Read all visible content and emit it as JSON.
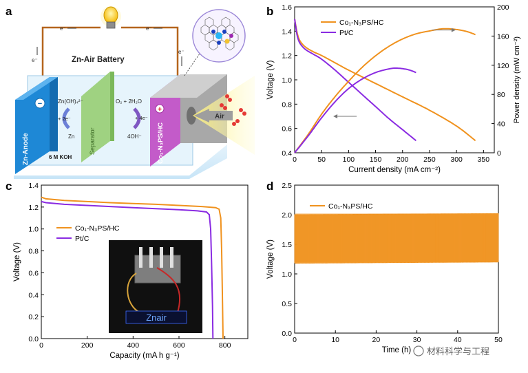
{
  "panels": {
    "a": {
      "letter": "a",
      "title": "Zn-Air Battery",
      "electron_label": "e⁻",
      "anode": "Zn-Anode",
      "anode_sign": "−",
      "separator": "Separator",
      "cathode": "Co₁-N₃PS/HC",
      "cathode_sign": "+",
      "electrolyte": "6 M KOH",
      "zincate": "Zn(OH)₄²⁻",
      "minus_2e": "+ 2e⁻",
      "zn": "Zn",
      "o2_h2o": "O₂ + 2H₂O",
      "plus_4e": "+ 4e⁻",
      "oh": "4OH⁻",
      "air": "Air"
    },
    "b": {
      "letter": "b"
    },
    "c": {
      "letter": "c"
    },
    "d": {
      "letter": "d"
    }
  },
  "watermark": "材料科学与工程",
  "colors": {
    "orange": "#f0921e",
    "purple": "#8a2be2"
  },
  "chart_data": [
    {
      "id": "b",
      "type": "line",
      "xlabel": "Current density (mA cm⁻²)",
      "ylabel": "Voltage (V)",
      "y2label": "Power density (mW cm⁻²)",
      "xlim": [
        0,
        370
      ],
      "ylim": [
        0.4,
        1.6
      ],
      "y2lim": [
        0,
        200
      ],
      "xticks": [
        0,
        50,
        100,
        150,
        200,
        250,
        300,
        350
      ],
      "yticks": [
        0.4,
        0.6,
        0.8,
        1.0,
        1.2,
        1.4,
        1.6
      ],
      "y2ticks": [
        0,
        40,
        80,
        120,
        160,
        200
      ],
      "series": [
        {
          "name": "Co₁-N₃PS/HC",
          "color": "#f0921e",
          "axis": "left",
          "x": [
            0,
            2,
            5,
            10,
            20,
            35,
            50,
            75,
            100,
            150,
            200,
            250,
            300,
            335
          ],
          "y": [
            1.5,
            1.45,
            1.38,
            1.32,
            1.27,
            1.23,
            1.2,
            1.14,
            1.08,
            0.97,
            0.86,
            0.75,
            0.62,
            0.5
          ]
        },
        {
          "name": "Pt/C",
          "color": "#8a2be2",
          "axis": "left",
          "x": [
            0,
            2,
            5,
            10,
            20,
            35,
            50,
            75,
            100,
            125,
            150,
            175,
            200,
            225
          ],
          "y": [
            1.5,
            1.44,
            1.36,
            1.3,
            1.25,
            1.21,
            1.17,
            1.08,
            0.98,
            0.88,
            0.78,
            0.68,
            0.59,
            0.5
          ]
        },
        {
          "name": "Co₁-N₃PS/HC power",
          "color": "#f0921e",
          "axis": "right",
          "x": [
            0,
            25,
            50,
            75,
            100,
            125,
            150,
            175,
            200,
            225,
            250,
            275,
            300,
            320,
            335
          ],
          "y": [
            0,
            25,
            53,
            77,
            98,
            117,
            133,
            146,
            156,
            163,
            167,
            170,
            169,
            166,
            162
          ]
        },
        {
          "name": "Pt/C power",
          "color": "#8a2be2",
          "axis": "right",
          "x": [
            0,
            25,
            50,
            75,
            100,
            125,
            150,
            175,
            190,
            210,
            225
          ],
          "y": [
            0,
            23,
            48,
            70,
            88,
            101,
            110,
            115,
            116,
            114,
            110
          ]
        }
      ],
      "legend": [
        "Co₁-N₃PS/HC",
        "Pt/C"
      ],
      "legend_position": "top-left"
    },
    {
      "id": "c",
      "type": "line",
      "xlabel": "Capacity (mA h g⁻¹)",
      "ylabel": "Voltage (V)",
      "xlim": [
        0,
        900
      ],
      "ylim": [
        0,
        1.4
      ],
      "xticks": [
        0,
        200,
        400,
        600,
        800
      ],
      "yticks": [
        0.0,
        0.2,
        0.4,
        0.6,
        0.8,
        1.0,
        1.2,
        1.4
      ],
      "series": [
        {
          "name": "Co₁-N₃PS/HC",
          "color": "#f0921e",
          "x": [
            0,
            20,
            100,
            200,
            300,
            400,
            500,
            600,
            700,
            760,
            775,
            782,
            786,
            790,
            792
          ],
          "y": [
            1.29,
            1.275,
            1.26,
            1.25,
            1.24,
            1.232,
            1.225,
            1.215,
            1.205,
            1.195,
            1.18,
            1.1,
            0.8,
            0.3,
            0.0
          ]
        },
        {
          "name": "Pt/C",
          "color": "#8a2be2",
          "x": [
            0,
            20,
            100,
            200,
            300,
            400,
            500,
            600,
            680,
            720,
            732,
            738,
            742,
            746,
            748
          ],
          "y": [
            1.25,
            1.24,
            1.225,
            1.215,
            1.205,
            1.195,
            1.185,
            1.175,
            1.165,
            1.155,
            1.13,
            1.0,
            0.7,
            0.3,
            0.0
          ]
        }
      ],
      "legend": [
        "Co₁-N₃PS/HC",
        "Pt/C"
      ],
      "legend_position": "middle-left",
      "inset_label": "Znair"
    },
    {
      "id": "d",
      "type": "line",
      "xlabel": "Time (h)",
      "ylabel": "Voltage (V)",
      "xlim": [
        0,
        50
      ],
      "ylim": [
        0.0,
        2.5
      ],
      "xticks": [
        0,
        10,
        20,
        30,
        40,
        50
      ],
      "yticks": [
        0.0,
        0.5,
        1.0,
        1.5,
        2.0,
        2.5
      ],
      "charge_voltage": 2.0,
      "discharge_voltage": 1.2,
      "cycle_period_h": 0.333,
      "series": [
        {
          "name": "Co₁-N₃PS/HC",
          "color": "#f0921e"
        }
      ],
      "legend": [
        "Co₁-N₃PS/HC"
      ],
      "legend_position": "top-left"
    }
  ]
}
